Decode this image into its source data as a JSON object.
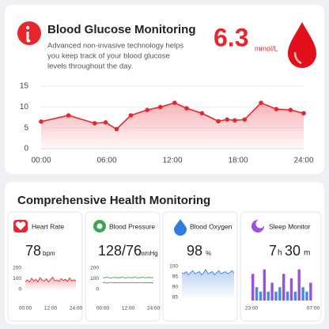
{
  "header": {
    "title": "Blood Glucose Monitoring",
    "description": [
      "Advanced non-invasive technology helps",
      "you keep track of your blood glucose",
      "levels throughout the day."
    ],
    "value": "6.3",
    "unit": "mmol/L"
  },
  "section_title": "Comprehensive Health Monitoring",
  "cards": [
    {
      "title": "Heart Rate",
      "value": "78",
      "unit": "bpm"
    },
    {
      "title": "Blood Pressure",
      "value": "128/76",
      "unit": "mmHg"
    },
    {
      "title": "Blood Oxygen",
      "value": "98",
      "unit": "%"
    },
    {
      "title": "Sleep Monitor",
      "value": "7",
      "unit": "h",
      "value2": "30",
      "unit2": "m"
    }
  ],
  "chart_data": [
    {
      "type": "area",
      "markers": true,
      "color": "#e8262e",
      "grid": true,
      "x": [
        0,
        2.5,
        4.9,
        5.9,
        6.9,
        8.2,
        9.7,
        10.9,
        12.2,
        13.3,
        14.7,
        16.2,
        17,
        17.7,
        18.6,
        20.1,
        21.5,
        22.8,
        24
      ],
      "values": [
        6.5,
        8,
        6.1,
        6.3,
        4.7,
        8,
        9.3,
        10,
        11,
        9.7,
        8.5,
        6.6,
        7,
        6.8,
        7,
        11,
        9.5,
        9.3,
        8.5
      ],
      "xlim": [
        0,
        24
      ],
      "ylim": [
        0,
        15
      ],
      "yticks": [
        0,
        5,
        10,
        15
      ],
      "xticks": [
        {
          "value": 0,
          "label": "00:00"
        },
        {
          "value": 6,
          "label": "06:00"
        },
        {
          "value": 12,
          "label": "12:00"
        },
        {
          "value": 18,
          "label": "18:00"
        },
        {
          "value": 24,
          "label": "24:00"
        }
      ]
    },
    {
      "type": "area",
      "markers": false,
      "color": "#e8262e",
      "grid": false,
      "x": [
        0,
        1,
        2,
        3,
        4,
        5,
        6,
        7,
        8,
        9,
        10,
        11,
        12,
        13,
        14,
        15,
        16,
        17,
        18,
        19,
        20,
        21,
        22,
        23,
        24
      ],
      "values": [
        75,
        90,
        70,
        105,
        80,
        95,
        72,
        110,
        85,
        78,
        100,
        70,
        92,
        115,
        80,
        88,
        74,
        102,
        83,
        95,
        76,
        108,
        82,
        90,
        78
      ],
      "xlim": [
        0,
        24
      ],
      "ylim": [
        0,
        200
      ],
      "yticks": [
        0,
        100,
        200
      ],
      "xticks": [
        {
          "value": 0,
          "label": "00:00"
        },
        {
          "value": 12,
          "label": "12:00"
        },
        {
          "value": 24,
          "label": "24:00"
        }
      ]
    },
    {
      "type": "line",
      "markers": false,
      "grid": false,
      "x": [
        0,
        1,
        2,
        3,
        4,
        5,
        6,
        7,
        8,
        9,
        10,
        11,
        12,
        13,
        14,
        15,
        16,
        17,
        18,
        19,
        20,
        21,
        22,
        23,
        24
      ],
      "series": [
        {
          "color": "#3aa655",
          "values": [
            112,
            108,
            115,
            110,
            106,
            114,
            110,
            112,
            108,
            116,
            110,
            107,
            113,
            111,
            109,
            115,
            110,
            108,
            112,
            114,
            109,
            111,
            113,
            110,
            112
          ]
        },
        {
          "color": "#3aa655",
          "values": [
            62,
            65,
            60,
            64,
            66,
            61,
            63,
            65,
            60,
            64,
            62,
            66,
            61,
            63,
            65,
            60,
            64,
            62,
            66,
            61,
            63,
            65,
            62,
            64,
            63
          ]
        }
      ],
      "xlim": [
        0,
        24
      ],
      "ylim": [
        0,
        200
      ],
      "yticks": [
        0,
        100,
        200
      ],
      "xticks": [
        {
          "value": 0,
          "label": "00:00"
        },
        {
          "value": 12,
          "label": "12:00"
        },
        {
          "value": 24,
          "label": "24:00"
        }
      ]
    },
    {
      "type": "area",
      "markers": false,
      "color": "#3d7fe0",
      "grid": false,
      "x": [
        0,
        1,
        2,
        3,
        4,
        5,
        6,
        7,
        8,
        9,
        10,
        11,
        12,
        13,
        14,
        15,
        16,
        17,
        18,
        19,
        20,
        21,
        22,
        23,
        24
      ],
      "values": [
        97,
        96.5,
        97.5,
        96,
        97,
        98,
        96.5,
        97,
        97.5,
        96,
        97,
        98.5,
        96.5,
        97,
        97.5,
        96,
        97,
        98,
        96.5,
        97,
        97.5,
        96.5,
        97,
        98,
        97
      ],
      "xlim": [
        0,
        24
      ],
      "ylim": [
        85,
        100
      ],
      "yticks": [
        85,
        90,
        95,
        100
      ],
      "xticks": []
    },
    {
      "type": "bar",
      "grid": false,
      "x": [
        23,
        23.5,
        24,
        24.5,
        25,
        25.5,
        26,
        26.5,
        27,
        27.5,
        28,
        28.5,
        29,
        29.5,
        30,
        30.5
      ],
      "values": [
        3,
        1.5,
        1,
        3.5,
        1,
        2,
        1,
        1.5,
        3,
        1,
        2.5,
        1,
        3.5,
        1.5,
        1,
        2
      ],
      "colors": [
        "#9b51e0",
        "#4a86e8",
        "#4a86e8",
        "#9b51e0",
        "#4a86e8",
        "#9b51e0",
        "#4a86e8",
        "#4a86e8",
        "#9b51e0",
        "#4a86e8",
        "#9b51e0",
        "#4a86e8",
        "#9b51e0",
        "#4a86e8",
        "#4a86e8",
        "#9b51e0"
      ],
      "xlim": [
        23,
        31
      ],
      "ylim": [
        0,
        4
      ],
      "xticks": [
        {
          "value": 23,
          "label": "23:00"
        },
        {
          "value": 31,
          "label": "07:00"
        }
      ]
    }
  ]
}
